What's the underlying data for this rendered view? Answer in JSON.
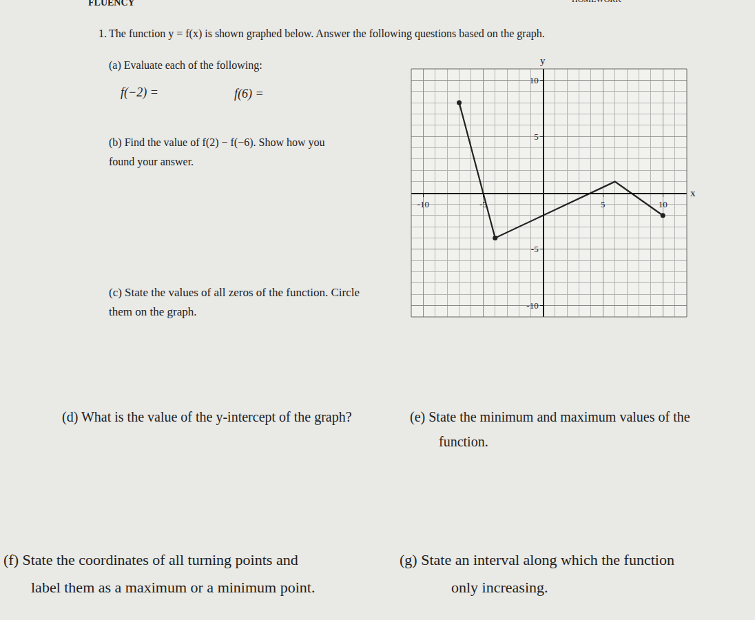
{
  "document": {
    "header": {
      "left": "FLUENCY",
      "right": "HOMEWORK"
    },
    "question": {
      "number": "1.",
      "text": "The function y = f(x) is shown graphed below. Answer the following questions based on the graph."
    },
    "parts": [
      {
        "label": "(a)",
        "lines": [
          "Evaluate each of the following:"
        ]
      },
      {
        "label": "(b)",
        "lines": [
          "Find the value of f(2) − f(−6). Show how you",
          "found your answer."
        ]
      },
      {
        "label": "(c)",
        "lines": [
          "State the values of all zeros of the function. Circle",
          "them on the graph."
        ]
      },
      {
        "label": "(d)",
        "lines": [
          "What is the value of the y-intercept of the graph?"
        ]
      },
      {
        "label": "(e)",
        "lines": [
          "State the minimum and maximum values of the",
          "function."
        ]
      },
      {
        "label": "(f)",
        "lines": [
          "State the coordinates of all turning points and",
          "label them as a maximum or a minimum point."
        ]
      },
      {
        "label": "(g)",
        "lines": [
          "State an interval along which the function",
          "only increasing."
        ]
      }
    ],
    "evaluations": [
      "f(−2) =",
      "f(6) ="
    ]
  },
  "chart_data": {
    "type": "line",
    "x": [
      -7,
      -5,
      -4,
      6,
      10
    ],
    "values": [
      8,
      0,
      -4,
      1,
      -2
    ],
    "color": "#222222",
    "marked_points": {
      "x": [
        -7,
        -4,
        10
      ],
      "y": [
        8,
        -4,
        -2
      ]
    },
    "xlim": [
      -11,
      12
    ],
    "ylim": [
      -11,
      11
    ],
    "xticks": [
      -10,
      -5,
      5,
      10
    ],
    "yticks": [
      -10,
      -5,
      5,
      10
    ],
    "grid": true,
    "x_label": "x",
    "y_label": "y"
  }
}
